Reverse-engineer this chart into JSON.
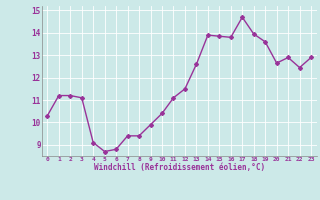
{
  "x": [
    0,
    1,
    2,
    3,
    4,
    5,
    6,
    7,
    8,
    9,
    10,
    11,
    12,
    13,
    14,
    15,
    16,
    17,
    18,
    19,
    20,
    21,
    22,
    23
  ],
  "y": [
    10.3,
    11.2,
    11.2,
    11.1,
    9.1,
    8.7,
    8.8,
    9.4,
    9.4,
    9.9,
    10.4,
    11.1,
    11.5,
    12.6,
    13.9,
    13.85,
    13.8,
    14.7,
    13.95,
    13.6,
    12.65,
    12.9,
    12.45,
    12.9
  ],
  "line_color": "#993399",
  "marker": "D",
  "marker_size": 2,
  "bg_color": "#cce9e8",
  "grid_color": "#b0d8d8",
  "xlabel": "Windchill (Refroidissement éolien,°C)",
  "xlabel_color": "#993399",
  "tick_color": "#993399",
  "xlim": [
    -0.5,
    23.5
  ],
  "ylim": [
    8.5,
    15.2
  ],
  "yticks": [
    9,
    10,
    11,
    12,
    13,
    14,
    15
  ],
  "xtick_labels": [
    "0",
    "1",
    "2",
    "3",
    "4",
    "5",
    "6",
    "7",
    "8",
    "9",
    "10",
    "11",
    "12",
    "13",
    "14",
    "15",
    "16",
    "17",
    "18",
    "19",
    "20",
    "21",
    "22",
    "23"
  ],
  "linewidth": 1.0
}
